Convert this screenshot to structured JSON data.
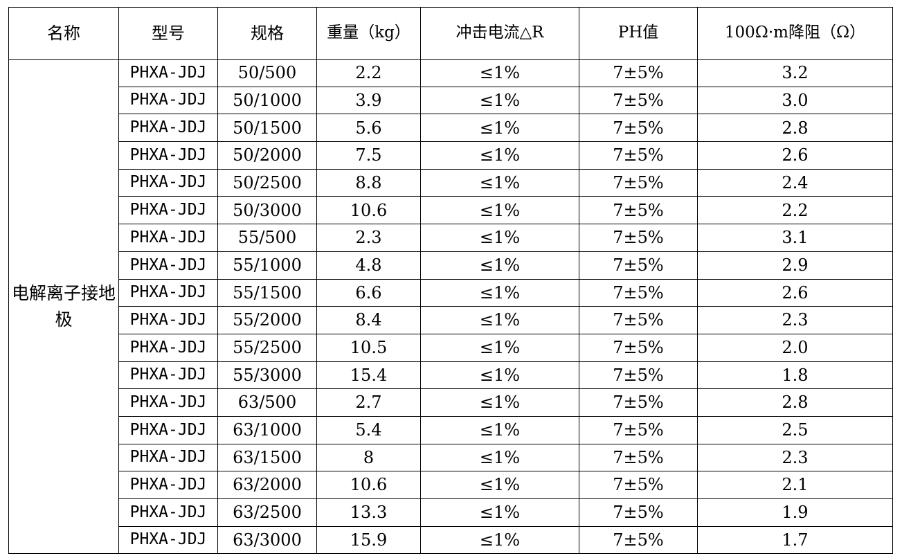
{
  "table": {
    "headers": [
      "名称",
      "型号",
      "规格",
      "重量（kg）",
      "冲击电流△R",
      "PH值",
      "100Ω·m降阻（Ω）"
    ],
    "name": "电解离子接地极",
    "rows": [
      {
        "model": "PHXA-JDJ",
        "spec": "50/500",
        "weight": "2.2",
        "impact": "≤1%",
        "ph": "7±5%",
        "reduction": "3.2"
      },
      {
        "model": "PHXA-JDJ",
        "spec": "50/1000",
        "weight": "3.9",
        "impact": "≤1%",
        "ph": "7±5%",
        "reduction": "3.0"
      },
      {
        "model": "PHXA-JDJ",
        "spec": "50/1500",
        "weight": "5.6",
        "impact": "≤1%",
        "ph": "7±5%",
        "reduction": "2.8"
      },
      {
        "model": "PHXA-JDJ",
        "spec": "50/2000",
        "weight": "7.5",
        "impact": "≤1%",
        "ph": "7±5%",
        "reduction": "2.6"
      },
      {
        "model": "PHXA-JDJ",
        "spec": "50/2500",
        "weight": "8.8",
        "impact": "≤1%",
        "ph": "7±5%",
        "reduction": "2.4"
      },
      {
        "model": "PHXA-JDJ",
        "spec": "50/3000",
        "weight": "10.6",
        "impact": "≤1%",
        "ph": "7±5%",
        "reduction": "2.2"
      },
      {
        "model": "PHXA-JDJ",
        "spec": "55/500",
        "weight": "2.3",
        "impact": "≤1%",
        "ph": "7±5%",
        "reduction": "3.1"
      },
      {
        "model": "PHXA-JDJ",
        "spec": "55/1000",
        "weight": "4.8",
        "impact": "≤1%",
        "ph": "7±5%",
        "reduction": "2.9"
      },
      {
        "model": "PHXA-JDJ",
        "spec": "55/1500",
        "weight": "6.6",
        "impact": "≤1%",
        "ph": "7±5%",
        "reduction": "2.6"
      },
      {
        "model": "PHXA-JDJ",
        "spec": "55/2000",
        "weight": "8.4",
        "impact": "≤1%",
        "ph": "7±5%",
        "reduction": "2.3"
      },
      {
        "model": "PHXA-JDJ",
        "spec": "55/2500",
        "weight": "10.5",
        "impact": "≤1%",
        "ph": "7±5%",
        "reduction": "2.0"
      },
      {
        "model": "PHXA-JDJ",
        "spec": "55/3000",
        "weight": "15.4",
        "impact": "≤1%",
        "ph": "7±5%",
        "reduction": "1.8"
      },
      {
        "model": "PHXA-JDJ",
        "spec": "63/500",
        "weight": "2.7",
        "impact": "≤1%",
        "ph": "7±5%",
        "reduction": "2.8"
      },
      {
        "model": "PHXA-JDJ",
        "spec": "63/1000",
        "weight": "5.4",
        "impact": "≤1%",
        "ph": "7±5%",
        "reduction": "2.5"
      },
      {
        "model": "PHXA-JDJ",
        "spec": "63/1500",
        "weight": "8",
        "impact": "≤1%",
        "ph": "7±5%",
        "reduction": "2.3"
      },
      {
        "model": "PHXA-JDJ",
        "spec": "63/2000",
        "weight": "10.6",
        "impact": "≤1%",
        "ph": "7±5%",
        "reduction": "2.1"
      },
      {
        "model": "PHXA-JDJ",
        "spec": "63/2500",
        "weight": "13.3",
        "impact": "≤1%",
        "ph": "7±5%",
        "reduction": "1.9"
      },
      {
        "model": "PHXA-JDJ",
        "spec": "63/3000",
        "weight": "15.9",
        "impact": "≤1%",
        "ph": "7±5%",
        "reduction": "1.7"
      }
    ]
  }
}
